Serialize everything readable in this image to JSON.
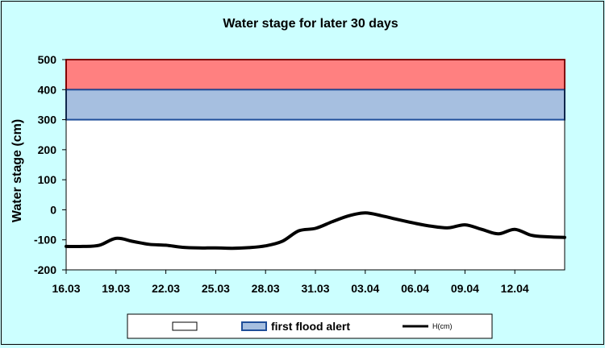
{
  "chart_data": {
    "type": "line",
    "title": "Water stage for later 30 days",
    "ylabel": "Water stage (cm)",
    "xlabel": "",
    "ylim": [
      -200,
      500
    ],
    "yticks": [
      500,
      400,
      300,
      200,
      100,
      0,
      -100,
      -200
    ],
    "xticks": [
      "16.03",
      "19.03",
      "22.03",
      "25.03",
      "28.03",
      "31.03",
      "03.04",
      "06.04",
      "09.04",
      "12.04"
    ],
    "x_start": "16.03",
    "x_end": "15.04",
    "grid": false,
    "bands": [
      {
        "name": "",
        "from": 400,
        "to": 500,
        "color": "#ff8080",
        "border": "#ff0000"
      },
      {
        "name": "first flood alert",
        "from": 300,
        "to": 400,
        "color": "#a6bfe0",
        "border": "#1f4e99"
      }
    ],
    "series": [
      {
        "name": "H(cm)",
        "color": "#000000",
        "x": [
          "16.03",
          "17.03",
          "18.03",
          "19.03",
          "20.03",
          "21.03",
          "22.03",
          "23.03",
          "24.03",
          "25.03",
          "26.03",
          "27.03",
          "28.03",
          "29.03",
          "30.03",
          "31.03",
          "01.04",
          "02.04",
          "03.04",
          "04.04",
          "05.04",
          "06.04",
          "07.04",
          "08.04",
          "09.04",
          "10.04",
          "11.04",
          "12.04",
          "13.04",
          "14.04",
          "15.04"
        ],
        "values": [
          -122,
          -122,
          -118,
          -95,
          -105,
          -115,
          -118,
          -125,
          -127,
          -127,
          -128,
          -126,
          -120,
          -105,
          -70,
          -62,
          -40,
          -20,
          -10,
          -20,
          -33,
          -45,
          -55,
          -60,
          -50,
          -65,
          -80,
          -65,
          -85,
          -90,
          -92
        ]
      }
    ],
    "legend": {
      "placement": "bottom",
      "items": [
        {
          "label": "",
          "swatch": "#ffffff"
        },
        {
          "label": "first flood alert",
          "swatch": "#a6bfe0"
        },
        {
          "label": "H(cm)",
          "swatch": "#000000"
        }
      ]
    }
  }
}
